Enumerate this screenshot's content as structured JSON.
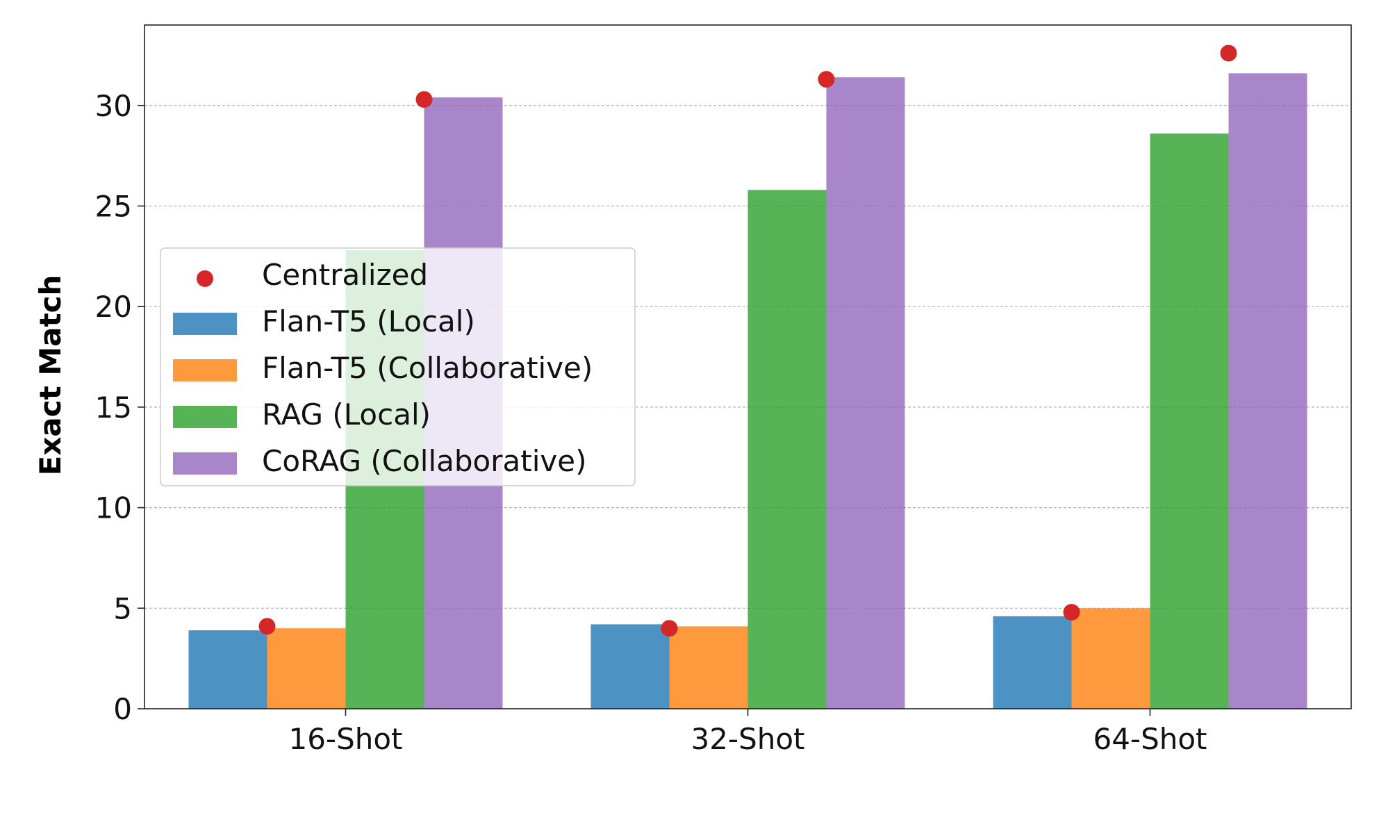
{
  "chart_data": {
    "type": "bar",
    "title": "",
    "xlabel": "",
    "ylabel": "Exact Match",
    "categories": [
      "16-Shot",
      "32-Shot",
      "64-Shot"
    ],
    "ylim": [
      0,
      34
    ],
    "yticks": [
      0,
      5,
      10,
      15,
      20,
      25,
      30
    ],
    "grid": "horizontal, dashed",
    "legend_placement": "center-left",
    "series": [
      {
        "name": "Flan-T5 (Local)",
        "color": "#1f77b4",
        "values": [
          3.9,
          4.2,
          4.6
        ]
      },
      {
        "name": "Flan-T5 (Collaborative)",
        "color": "#ff7f0e",
        "values": [
          4.0,
          4.1,
          5.0
        ]
      },
      {
        "name": "RAG (Local)",
        "color": "#2ca02c",
        "values": [
          22.8,
          25.8,
          28.6
        ]
      },
      {
        "name": "CoRAG (Collaborative)",
        "color": "#9467bd",
        "values": [
          30.4,
          31.4,
          31.6
        ]
      }
    ],
    "markers": {
      "name": "Centralized",
      "color": "#d62728",
      "points": [
        {
          "category": "16-Shot",
          "series": "Flan-T5 (Collaborative)",
          "value": 4.1
        },
        {
          "category": "16-Shot",
          "series": "CoRAG (Collaborative)",
          "value": 30.3
        },
        {
          "category": "32-Shot",
          "series": "Flan-T5 (Collaborative)",
          "value": 4.0
        },
        {
          "category": "32-Shot",
          "series": "CoRAG (Collaborative)",
          "value": 31.3
        },
        {
          "category": "64-Shot",
          "series": "Flan-T5 (Collaborative)",
          "value": 4.8
        },
        {
          "category": "64-Shot",
          "series": "CoRAG (Collaborative)",
          "value": 32.6
        }
      ]
    }
  }
}
